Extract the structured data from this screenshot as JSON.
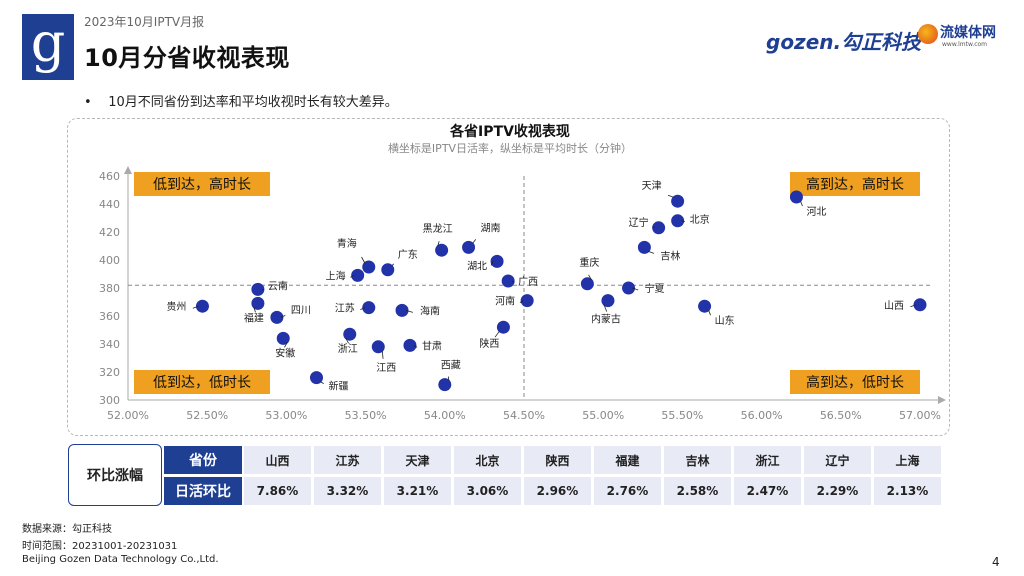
{
  "header": {
    "report_title": "2023年10月IPTV月报",
    "page_title": "10月分省收视表现",
    "logo_letter": "g",
    "brand_gozen": "gozen.勾正科技",
    "brand_lmt": "流媒体网",
    "brand_lmt_url": "www.lmtw.com"
  },
  "bullet": "10月不同省份到达率和平均收视时长有较大差异。",
  "chart_data": {
    "type": "scatter",
    "title": "各省IPTV收视表现",
    "subtitle": "横坐标是IPTV日活率，纵坐标是平均时长（分钟）",
    "xlim": [
      52.0,
      57.0
    ],
    "ylim": [
      300,
      460
    ],
    "x_ticks": [
      "52.00%",
      "52.50%",
      "53.00%",
      "53.50%",
      "54.00%",
      "54.50%",
      "55.00%",
      "55.50%",
      "56.00%",
      "56.50%",
      "57.00%"
    ],
    "y_ticks": [
      "460",
      "440",
      "420",
      "400",
      "380",
      "360",
      "340",
      "320",
      "300"
    ],
    "divider": {
      "x": 54.5,
      "y": 382
    },
    "quadrants": {
      "top_left": "低到达，高时长",
      "top_right": "高到达，高时长",
      "bottom_left": "低到达，低时长",
      "bottom_right": "高到达，低时长"
    },
    "points": [
      {
        "name": "河北",
        "x": 56.22,
        "y": 445
      },
      {
        "name": "山西",
        "x": 57.0,
        "y": 368
      },
      {
        "name": "天津",
        "x": 55.47,
        "y": 442
      },
      {
        "name": "北京",
        "x": 55.47,
        "y": 428
      },
      {
        "name": "辽宁",
        "x": 55.35,
        "y": 423
      },
      {
        "name": "吉林",
        "x": 55.26,
        "y": 409
      },
      {
        "name": "宁夏",
        "x": 55.16,
        "y": 380
      },
      {
        "name": "重庆",
        "x": 54.9,
        "y": 383
      },
      {
        "name": "内蒙古",
        "x": 55.03,
        "y": 371
      },
      {
        "name": "山东",
        "x": 55.64,
        "y": 367
      },
      {
        "name": "黑龙江",
        "x": 53.98,
        "y": 407
      },
      {
        "name": "湖南",
        "x": 54.15,
        "y": 409
      },
      {
        "name": "湖北",
        "x": 54.33,
        "y": 399
      },
      {
        "name": "广西",
        "x": 54.4,
        "y": 385
      },
      {
        "name": "河南",
        "x": 54.52,
        "y": 371
      },
      {
        "name": "陕西",
        "x": 54.37,
        "y": 352
      },
      {
        "name": "西藏",
        "x": 54.0,
        "y": 311
      },
      {
        "name": "海南",
        "x": 53.73,
        "y": 364
      },
      {
        "name": "甘肃",
        "x": 53.78,
        "y": 339
      },
      {
        "name": "江西",
        "x": 53.58,
        "y": 338
      },
      {
        "name": "浙江",
        "x": 53.4,
        "y": 347
      },
      {
        "name": "江苏",
        "x": 53.52,
        "y": 366
      },
      {
        "name": "青海",
        "x": 53.52,
        "y": 395
      },
      {
        "name": "广东",
        "x": 53.64,
        "y": 393
      },
      {
        "name": "上海",
        "x": 53.45,
        "y": 389
      },
      {
        "name": "新疆",
        "x": 53.19,
        "y": 316
      },
      {
        "name": "安徽",
        "x": 52.98,
        "y": 344
      },
      {
        "name": "四川",
        "x": 52.94,
        "y": 359
      },
      {
        "name": "云南",
        "x": 52.82,
        "y": 379
      },
      {
        "name": "福建",
        "x": 52.82,
        "y": 369
      },
      {
        "name": "贵州",
        "x": 52.47,
        "y": 367
      }
    ]
  },
  "table": {
    "corner_label": "环比涨幅",
    "row1_label": "省份",
    "row2_label": "日活环比",
    "provinces": [
      "山西",
      "江苏",
      "天津",
      "北京",
      "陕西",
      "福建",
      "吉林",
      "浙江",
      "辽宁",
      "上海"
    ],
    "changes": [
      "7.86%",
      "3.32%",
      "3.21%",
      "3.06%",
      "2.96%",
      "2.76%",
      "2.58%",
      "2.47%",
      "2.29%",
      "2.13%"
    ]
  },
  "footer": {
    "source": "数据来源：勾正科技",
    "period": "时间范围：20231001-20231031",
    "company": "Beijing Gozen Data Technology Co.,Ltd.",
    "page_number": "4"
  },
  "colors": {
    "brand_blue": "#1f3f93",
    "point": "#2232a8",
    "quadrant_label_bg": "#f0a020",
    "table_cell_bg": "#e8eaf6"
  }
}
